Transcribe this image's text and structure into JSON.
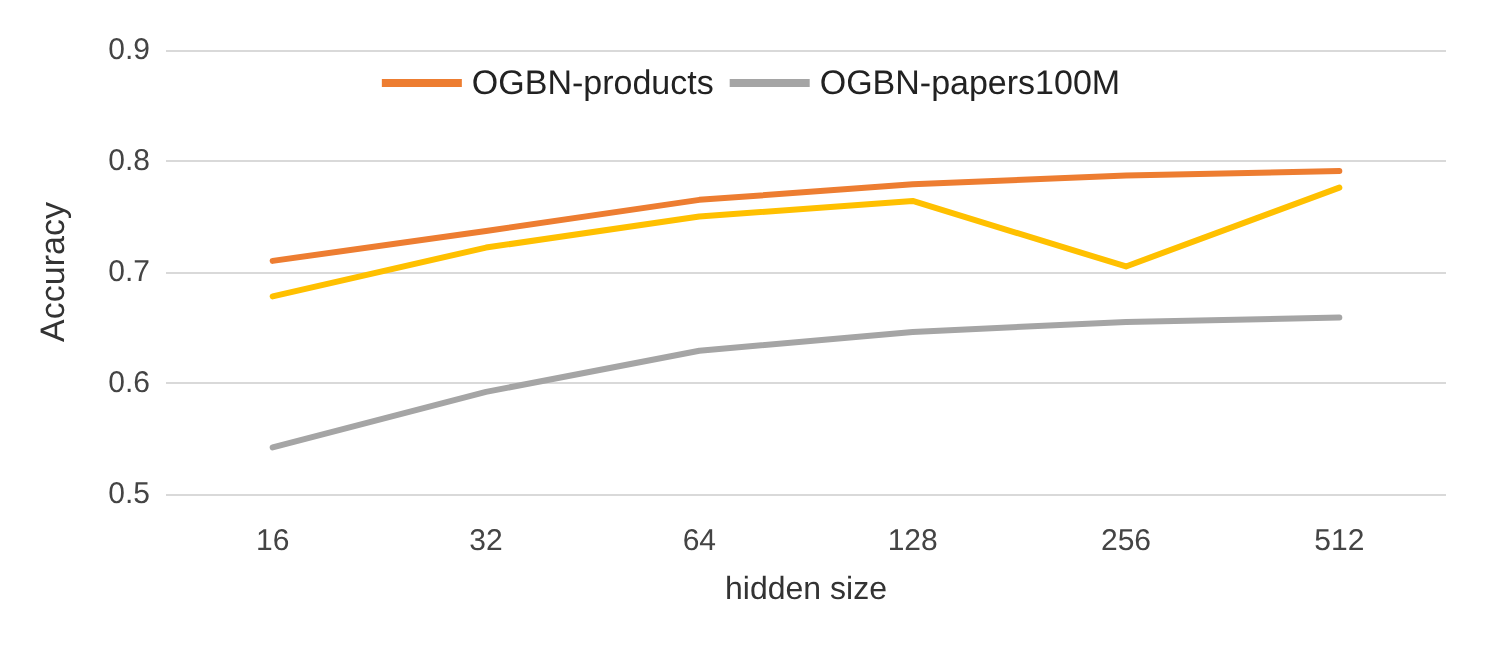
{
  "chart_data": {
    "type": "line",
    "xlabel": "hidden size",
    "ylabel": "Accuracy",
    "categories": [
      "16",
      "32",
      "64",
      "128",
      "256",
      "512"
    ],
    "series": [
      {
        "name": "OGBN-products",
        "color": "#ed7d31",
        "values": [
          0.71,
          0.737,
          0.765,
          0.779,
          0.787,
          0.791
        ]
      },
      {
        "name": "OGBN-papers100M",
        "color": "#a5a5a5",
        "values": [
          0.542,
          0.592,
          0.629,
          0.646,
          0.655,
          0.659
        ]
      },
      {
        "color": "#ffc000",
        "values": [
          0.678,
          0.722,
          0.75,
          0.764,
          0.705,
          0.776
        ]
      }
    ],
    "ylim": [
      0.5,
      0.9
    ],
    "yticks": [
      0.5,
      0.6,
      0.7,
      0.8,
      0.9
    ],
    "grid": "y",
    "legend": "top",
    "marker": "none",
    "line_style": "solid"
  }
}
